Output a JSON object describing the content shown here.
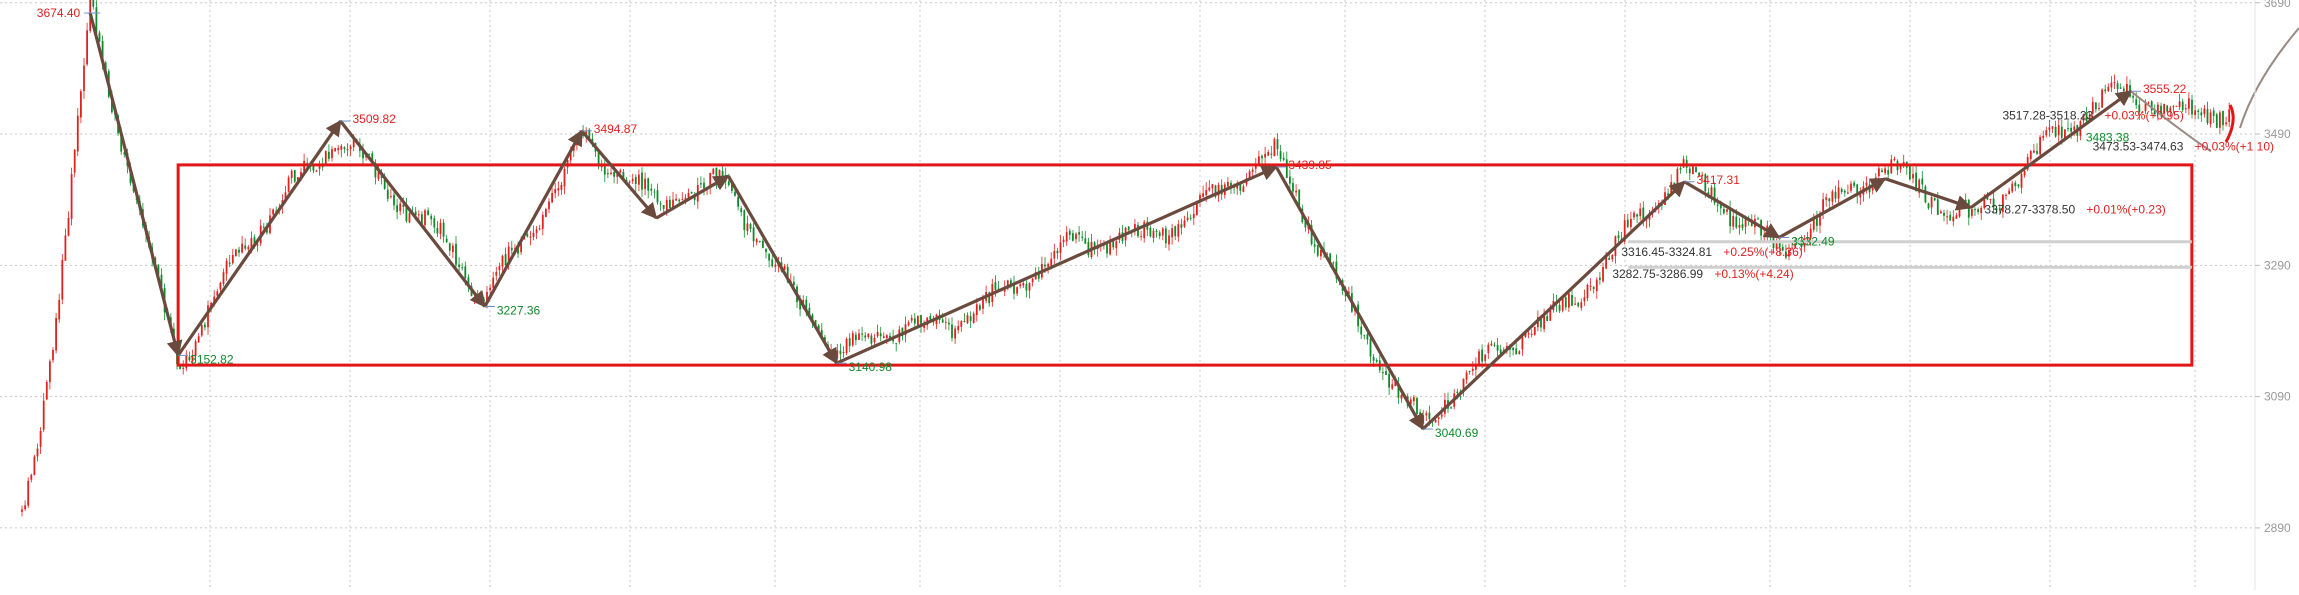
{
  "colors": {
    "up": "#e0221f",
    "down": "#0f8a2a",
    "zigzag": "#6b4a3e",
    "trend_thin": "#e8302c",
    "box": "#e21616",
    "grid": "#c8c8c8",
    "axis_label": "#999999",
    "text_dark": "#333333"
  },
  "chart_data": {
    "type": "candlestick",
    "title": "",
    "xlabel": "",
    "ylabel": "",
    "ylim": [
      2800,
      3700
    ],
    "y_ticks": [
      {
        "value": 3690,
        "label": "3690"
      },
      {
        "value": 3490,
        "label": "3490"
      },
      {
        "value": 3290,
        "label": "3290"
      },
      {
        "value": 3090,
        "label": "3090"
      },
      {
        "value": 2890,
        "label": "2890"
      }
    ],
    "grid": true,
    "zigzag": [
      {
        "t": 0.04,
        "v": 3674.4,
        "label": "3674.40",
        "kind": "high"
      },
      {
        "t": 0.079,
        "v": 3152.82,
        "label": "3152.82",
        "kind": "low"
      },
      {
        "t": 0.151,
        "v": 3509.82,
        "label": "3509.82",
        "kind": "high"
      },
      {
        "t": 0.215,
        "v": 3227.36,
        "label": "3227.36",
        "kind": "low"
      },
      {
        "t": 0.258,
        "v": 3494.87,
        "label": "3494.87",
        "kind": "high"
      },
      {
        "t": 0.291,
        "v": 3362,
        "label": "",
        "kind": "low"
      },
      {
        "t": 0.323,
        "v": 3426,
        "label": "",
        "kind": "high"
      },
      {
        "t": 0.371,
        "v": 3140.98,
        "label": "3140.98",
        "kind": "low"
      },
      {
        "t": 0.566,
        "v": 3439.85,
        "label": "3439.85",
        "kind": "high"
      },
      {
        "t": 0.631,
        "v": 3040.69,
        "label": "3040.69",
        "kind": "low"
      },
      {
        "t": 0.747,
        "v": 3417.31,
        "label": "3417.31",
        "kind": "high"
      },
      {
        "t": 0.789,
        "v": 3332.49,
        "label": "3332.49",
        "kind": "low"
      },
      {
        "t": 0.836,
        "v": 3422,
        "label": "",
        "kind": "high"
      },
      {
        "t": 0.874,
        "v": 3378,
        "label": "",
        "kind": "low"
      },
      {
        "t": 0.945,
        "v": 3555.22,
        "label": "3555.22",
        "kind": "high"
      }
    ],
    "box": {
      "t_start": 0.079,
      "t_end": 0.972,
      "top": 3443,
      "bottom": 3138
    },
    "range_annotations": [
      {
        "text": "3517.28-3518.23",
        "pct": "+0.03%(+0.95)",
        "t": 0.888,
        "v": 3518
      },
      {
        "text": "3483.38",
        "pct": "",
        "t": 0.925,
        "v": 3485
      },
      {
        "text": "3473.53-3474.63",
        "pct": "+0.03%(+1.10)",
        "t": 0.928,
        "v": 3471
      },
      {
        "text": "3378.27-3378.50",
        "pct": "+0.01%(+0.23)",
        "t": 0.88,
        "v": 3375
      },
      {
        "text": "3316.45-3324.81",
        "pct": "+0.25%(+8.36)",
        "t": 0.719,
        "v": 3310
      },
      {
        "text": "3282.75-3286.99",
        "pct": "+0.13%(+4.24)",
        "t": 0.715,
        "v": 3277
      }
    ],
    "gap_lines": [
      {
        "v": 3326,
        "t_start": 0.722,
        "t_end": 0.972
      },
      {
        "v": 3287,
        "t_start": 0.722,
        "t_end": 0.972
      }
    ]
  }
}
